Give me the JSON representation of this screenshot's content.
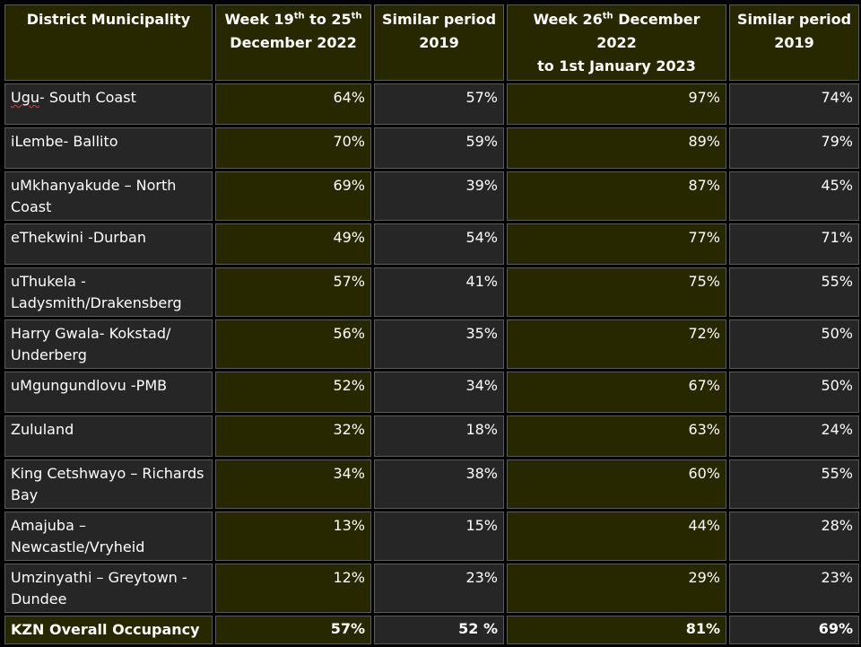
{
  "header": {
    "district": "District Municipality",
    "week1_prefix": "Week 19",
    "week1_sup_a": "th",
    "week1_mid": " to 25",
    "week1_sup_b": "th",
    "week1_line2": "December 2022",
    "similar1": "Similar period 2019",
    "week2_prefix": "Week 26",
    "week2_sup": "th",
    "week2_mid": " December 2022",
    "week2_line2": "to 1st January  2023",
    "similar2": "Similar period 2019"
  },
  "rows": [
    {
      "name_a": "Ugu",
      "name_b": "- South Coast",
      "w1": "64%",
      "s1": "57%",
      "w2": "97%",
      "s2": "74%"
    },
    {
      "name_a": "",
      "name_b": "iLembe- Ballito",
      "w1": "70%",
      "s1": "59%",
      "w2": "89%",
      "s2": "79%"
    },
    {
      "name_a": "",
      "name_b": "uMkhanyakude – North Coast",
      "w1": "69%",
      "s1": "39%",
      "w2": "87%",
      "s2": "45%"
    },
    {
      "name_a": "",
      "name_b": "eThekwini -Durban",
      "w1": "49%",
      "s1": "54%",
      "w2": "77%",
      "s2": "71%"
    },
    {
      "name_a": "",
      "name_b": "uThukela - Ladysmith/Drakensberg",
      "w1": "57%",
      "s1": "41%",
      "w2": "75%",
      "s2": "55%"
    },
    {
      "name_a": "",
      "name_b": "Harry Gwala- Kokstad/ Underberg",
      "w1": "56%",
      "s1": "35%",
      "w2": "72%",
      "s2": "50%"
    },
    {
      "name_a": "",
      "name_b": "uMgungundlovu -PMB",
      "w1": "52%",
      "s1": "34%",
      "w2": "67%",
      "s2": "50%"
    },
    {
      "name_a": "",
      "name_b": "Zululand",
      "w1": "32%",
      "s1": "18%",
      "w2": "63%",
      "s2": "24%"
    },
    {
      "name_a": "",
      "name_b": "King Cetshwayo – Richards Bay",
      "w1": "34%",
      "s1": "38%",
      "w2": "60%",
      "s2": "55%"
    },
    {
      "name_a": "",
      "name_b": "Amajuba – Newcastle/Vryheid",
      "w1": "13%",
      "s1": "15%",
      "w2": "44%",
      "s2": "28%"
    },
    {
      "name_a": "",
      "name_b": "Umzinyathi – Greytown - Dundee",
      "w1": "12%",
      "s1": "23%",
      "w2": "29%",
      "s2": "23%"
    }
  ],
  "total": {
    "name": "KZN Overall Occupancy",
    "w1": "57%",
    "s1": "52 %",
    "w2": "81%",
    "s2": "69%"
  },
  "colors": {
    "olive_cell": "#272700",
    "dark_cell": "#262626",
    "text": "#ffffff",
    "background": "#000000"
  }
}
